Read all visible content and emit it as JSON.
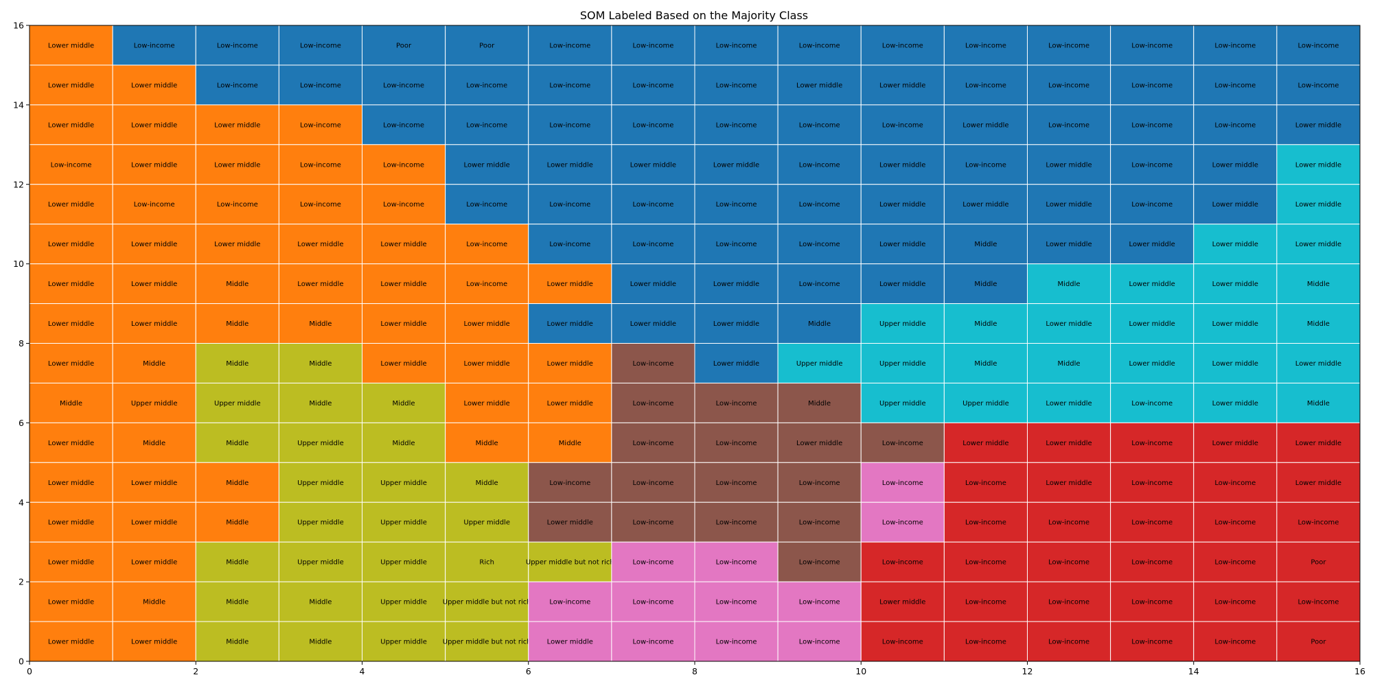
{
  "chart_data": {
    "type": "heatmap",
    "title": "SOM Labeled Based on the Majority Class",
    "xlabel": "",
    "ylabel": "",
    "xlim": [
      0,
      16
    ],
    "ylim": [
      0,
      16
    ],
    "x_ticks": [
      0,
      2,
      4,
      6,
      8,
      10,
      12,
      14,
      16
    ],
    "y_ticks": [
      0,
      2,
      4,
      6,
      8,
      10,
      12,
      14,
      16
    ],
    "grid_size": [
      16,
      16
    ],
    "cluster_colors": [
      "#ff7f0e",
      "#1f77b4",
      "#bcbd22",
      "#17becf",
      "#8c564b",
      "#e377c2",
      "#d62728"
    ],
    "rows_top_to_bottom": [
      {
        "labels": [
          "Lower middle",
          "Low-income",
          "Low-income",
          "Low-income",
          "Poor",
          "Poor",
          "Low-income",
          "Low-income",
          "Low-income",
          "Low-income",
          "Low-income",
          "Low-income",
          "Low-income",
          "Low-income",
          "Low-income",
          "Low-income"
        ],
        "clusters": [
          0,
          1,
          1,
          1,
          1,
          1,
          1,
          1,
          1,
          1,
          1,
          1,
          1,
          1,
          1,
          1
        ]
      },
      {
        "labels": [
          "Lower middle",
          "Lower middle",
          "Low-income",
          "Low-income",
          "Low-income",
          "Low-income",
          "Low-income",
          "Low-income",
          "Low-income",
          "Lower middle",
          "Lower middle",
          "Low-income",
          "Low-income",
          "Low-income",
          "Low-income",
          "Low-income"
        ],
        "clusters": [
          0,
          0,
          1,
          1,
          1,
          1,
          1,
          1,
          1,
          1,
          1,
          1,
          1,
          1,
          1,
          1
        ]
      },
      {
        "labels": [
          "Lower middle",
          "Lower middle",
          "Lower middle",
          "Low-income",
          "Low-income",
          "Low-income",
          "Low-income",
          "Low-income",
          "Low-income",
          "Low-income",
          "Low-income",
          "Lower middle",
          "Low-income",
          "Low-income",
          "Low-income",
          "Lower middle"
        ],
        "clusters": [
          0,
          0,
          0,
          0,
          1,
          1,
          1,
          1,
          1,
          1,
          1,
          1,
          1,
          1,
          1,
          1
        ]
      },
      {
        "labels": [
          "Low-income",
          "Lower middle",
          "Lower middle",
          "Low-income",
          "Low-income",
          "Lower middle",
          "Lower middle",
          "Lower middle",
          "Lower middle",
          "Low-income",
          "Lower middle",
          "Low-income",
          "Lower middle",
          "Low-income",
          "Lower middle",
          "Lower middle"
        ],
        "clusters": [
          0,
          0,
          0,
          0,
          0,
          1,
          1,
          1,
          1,
          1,
          1,
          1,
          1,
          1,
          1,
          3
        ]
      },
      {
        "labels": [
          "Lower middle",
          "Low-income",
          "Low-income",
          "Low-income",
          "Low-income",
          "Low-income",
          "Low-income",
          "Low-income",
          "Low-income",
          "Low-income",
          "Lower middle",
          "Lower middle",
          "Lower middle",
          "Low-income",
          "Lower middle",
          "Lower middle"
        ],
        "clusters": [
          0,
          0,
          0,
          0,
          0,
          1,
          1,
          1,
          1,
          1,
          1,
          1,
          1,
          1,
          1,
          3
        ]
      },
      {
        "labels": [
          "Lower middle",
          "Lower middle",
          "Lower middle",
          "Lower middle",
          "Lower middle",
          "Low-income",
          "Low-income",
          "Low-income",
          "Low-income",
          "Low-income",
          "Lower middle",
          "Middle",
          "Lower middle",
          "Lower middle",
          "Lower middle",
          "Lower middle"
        ],
        "clusters": [
          0,
          0,
          0,
          0,
          0,
          0,
          1,
          1,
          1,
          1,
          1,
          1,
          1,
          1,
          3,
          3
        ]
      },
      {
        "labels": [
          "Lower middle",
          "Lower middle",
          "Middle",
          "Lower middle",
          "Lower middle",
          "Low-income",
          "Lower middle",
          "Lower middle",
          "Lower middle",
          "Low-income",
          "Lower middle",
          "Middle",
          "Middle",
          "Lower middle",
          "Lower middle",
          "Middle"
        ],
        "clusters": [
          0,
          0,
          0,
          0,
          0,
          0,
          0,
          1,
          1,
          1,
          1,
          1,
          3,
          3,
          3,
          3
        ]
      },
      {
        "labels": [
          "Lower middle",
          "Lower middle",
          "Middle",
          "Middle",
          "Lower middle",
          "Lower middle",
          "Lower middle",
          "Lower middle",
          "Lower middle",
          "Middle",
          "Upper middle",
          "Middle",
          "Lower middle",
          "Lower middle",
          "Lower middle",
          "Middle"
        ],
        "clusters": [
          0,
          0,
          0,
          0,
          0,
          0,
          1,
          1,
          1,
          1,
          3,
          3,
          3,
          3,
          3,
          3
        ]
      },
      {
        "labels": [
          "Lower middle",
          "Middle",
          "Middle",
          "Middle",
          "Lower middle",
          "Lower middle",
          "Lower middle",
          "Low-income",
          "Lower middle",
          "Upper middle",
          "Upper middle",
          "Middle",
          "Middle",
          "Lower middle",
          "Lower middle",
          "Lower middle"
        ],
        "clusters": [
          0,
          0,
          2,
          2,
          0,
          0,
          0,
          4,
          1,
          3,
          3,
          3,
          3,
          3,
          3,
          3
        ]
      },
      {
        "labels": [
          "Middle",
          "Upper middle",
          "Upper middle",
          "Middle",
          "Middle",
          "Lower middle",
          "Lower middle",
          "Low-income",
          "Low-income",
          "Middle",
          "Upper middle",
          "Upper middle",
          "Lower middle",
          "Low-income",
          "Lower middle",
          "Middle"
        ],
        "clusters": [
          0,
          0,
          2,
          2,
          2,
          0,
          0,
          4,
          4,
          4,
          3,
          3,
          3,
          3,
          3,
          3
        ]
      },
      {
        "labels": [
          "Lower middle",
          "Middle",
          "Middle",
          "Upper middle",
          "Middle",
          "Middle",
          "Middle",
          "Low-income",
          "Low-income",
          "Lower middle",
          "Low-income",
          "Lower middle",
          "Lower middle",
          "Low-income",
          "Lower middle",
          "Lower middle"
        ],
        "clusters": [
          0,
          0,
          2,
          2,
          2,
          0,
          0,
          4,
          4,
          4,
          4,
          6,
          6,
          6,
          6,
          6
        ]
      },
      {
        "labels": [
          "Lower middle",
          "Lower middle",
          "Middle",
          "Upper middle",
          "Upper middle",
          "Middle",
          "Low-income",
          "Low-income",
          "Low-income",
          "Low-income",
          "Low-income",
          "Low-income",
          "Lower middle",
          "Low-income",
          "Low-income",
          "Lower middle"
        ],
        "clusters": [
          0,
          0,
          0,
          2,
          2,
          2,
          4,
          4,
          4,
          4,
          5,
          6,
          6,
          6,
          6,
          6
        ]
      },
      {
        "labels": [
          "Lower middle",
          "Lower middle",
          "Middle",
          "Upper middle",
          "Upper middle",
          "Upper middle",
          "Lower middle",
          "Low-income",
          "Low-income",
          "Low-income",
          "Low-income",
          "Low-income",
          "Low-income",
          "Low-income",
          "Low-income",
          "Low-income"
        ],
        "clusters": [
          0,
          0,
          0,
          2,
          2,
          2,
          4,
          4,
          4,
          4,
          5,
          6,
          6,
          6,
          6,
          6
        ]
      },
      {
        "labels": [
          "Lower middle",
          "Lower middle",
          "Middle",
          "Upper middle",
          "Upper middle",
          "Rich",
          "Upper middle but not rich",
          "Low-income",
          "Low-income",
          "Low-income",
          "Low-income",
          "Low-income",
          "Low-income",
          "Low-income",
          "Low-income",
          "Poor"
        ],
        "clusters": [
          0,
          0,
          2,
          2,
          2,
          2,
          2,
          5,
          5,
          4,
          6,
          6,
          6,
          6,
          6,
          6
        ]
      },
      {
        "labels": [
          "Lower middle",
          "Middle",
          "Middle",
          "Middle",
          "Upper middle",
          "Upper middle but not rich",
          "Low-income",
          "Low-income",
          "Low-income",
          "Low-income",
          "Lower middle",
          "Low-income",
          "Low-income",
          "Low-income",
          "Low-income",
          "Low-income"
        ],
        "clusters": [
          0,
          0,
          2,
          2,
          2,
          2,
          5,
          5,
          5,
          5,
          6,
          6,
          6,
          6,
          6,
          6
        ]
      },
      {
        "labels": [
          "Lower middle",
          "Lower middle",
          "Middle",
          "Middle",
          "Upper middle",
          "Upper middle but not rich",
          "Lower middle",
          "Low-income",
          "Low-income",
          "Low-income",
          "Low-income",
          "Low-income",
          "Low-income",
          "Low-income",
          "Low-income",
          "Poor"
        ],
        "clusters": [
          0,
          0,
          2,
          2,
          2,
          2,
          5,
          5,
          5,
          5,
          6,
          6,
          6,
          6,
          6,
          6
        ]
      }
    ]
  }
}
